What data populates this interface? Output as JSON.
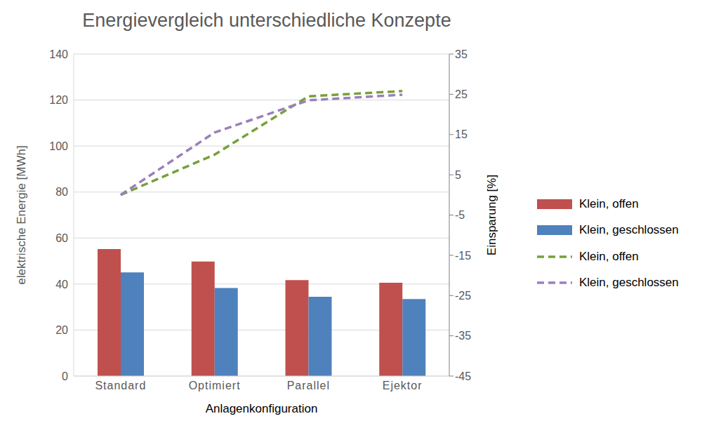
{
  "chart_data": {
    "type": "bar",
    "title": "Energievergleich unterschiedliche Konzepte",
    "x_label": "Anlagenkonfiguration",
    "y_label": "elektrische Energie [MWh]",
    "y2_label": "Einsparung [%]",
    "categories": [
      "Standard",
      "Optimiert",
      "Parallel",
      "Ejektor"
    ],
    "series": [
      {
        "name": "Klein, offen",
        "type": "bar",
        "color": "#c0504d",
        "values": [
          55.2,
          49.8,
          41.7,
          40.6
        ]
      },
      {
        "name": "Klein, geschlossen",
        "type": "bar",
        "color": "#4f81bd",
        "values": [
          45.1,
          38.3,
          34.5,
          33.5
        ]
      },
      {
        "name": "Klein, offen",
        "type": "line",
        "axis": "y2",
        "line_style": "dashed",
        "color": "#77a03a",
        "values": [
          0,
          10,
          24.5,
          25.8
        ]
      },
      {
        "name": "Klein, geschlossen",
        "type": "line",
        "axis": "y2",
        "line_style": "dashed",
        "color": "#9b7fbd",
        "values": [
          0,
          15.5,
          23.5,
          24.9
        ]
      }
    ],
    "ylim": [
      0,
      140
    ],
    "yticks": [
      0,
      20,
      40,
      60,
      80,
      100,
      120,
      140
    ],
    "y2lim": [
      -45,
      35
    ],
    "y2ticks": [
      -45,
      -35,
      -25,
      -15,
      -5,
      5,
      15,
      25,
      35
    ],
    "grid": true,
    "legend": "right"
  }
}
